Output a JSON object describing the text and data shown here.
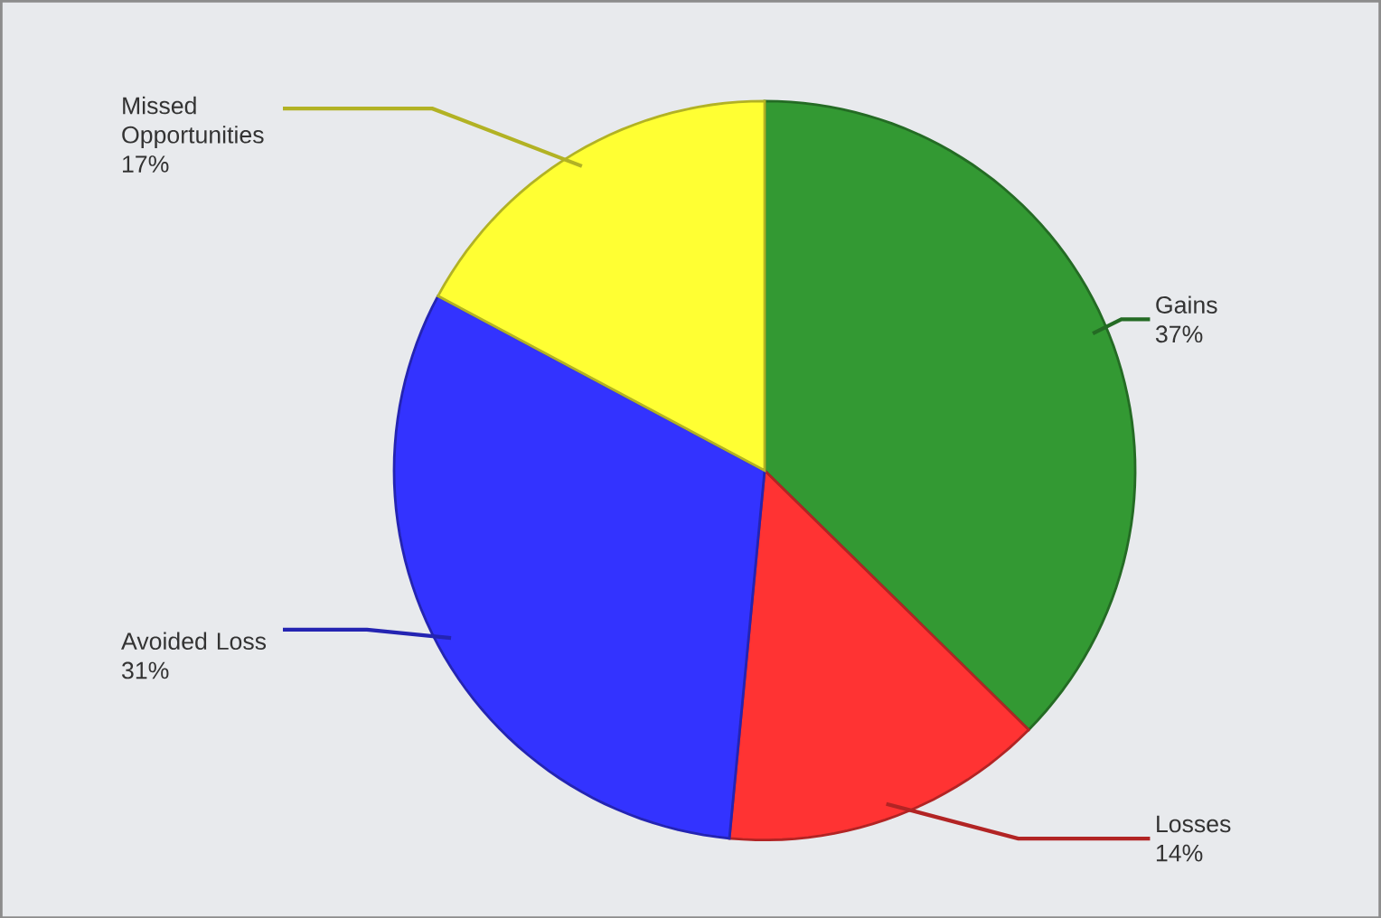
{
  "chart_data": {
    "type": "pie",
    "categories": [
      "Gains",
      "Losses",
      "Avoided Loss",
      "Missed Opportunities"
    ],
    "values": [
      37,
      14,
      31,
      17
    ],
    "value_labels": [
      "37%",
      "14%",
      "31%",
      "17%"
    ],
    "colors": [
      "#339933",
      "#ff3333",
      "#3333ff",
      "#ffff33"
    ]
  }
}
